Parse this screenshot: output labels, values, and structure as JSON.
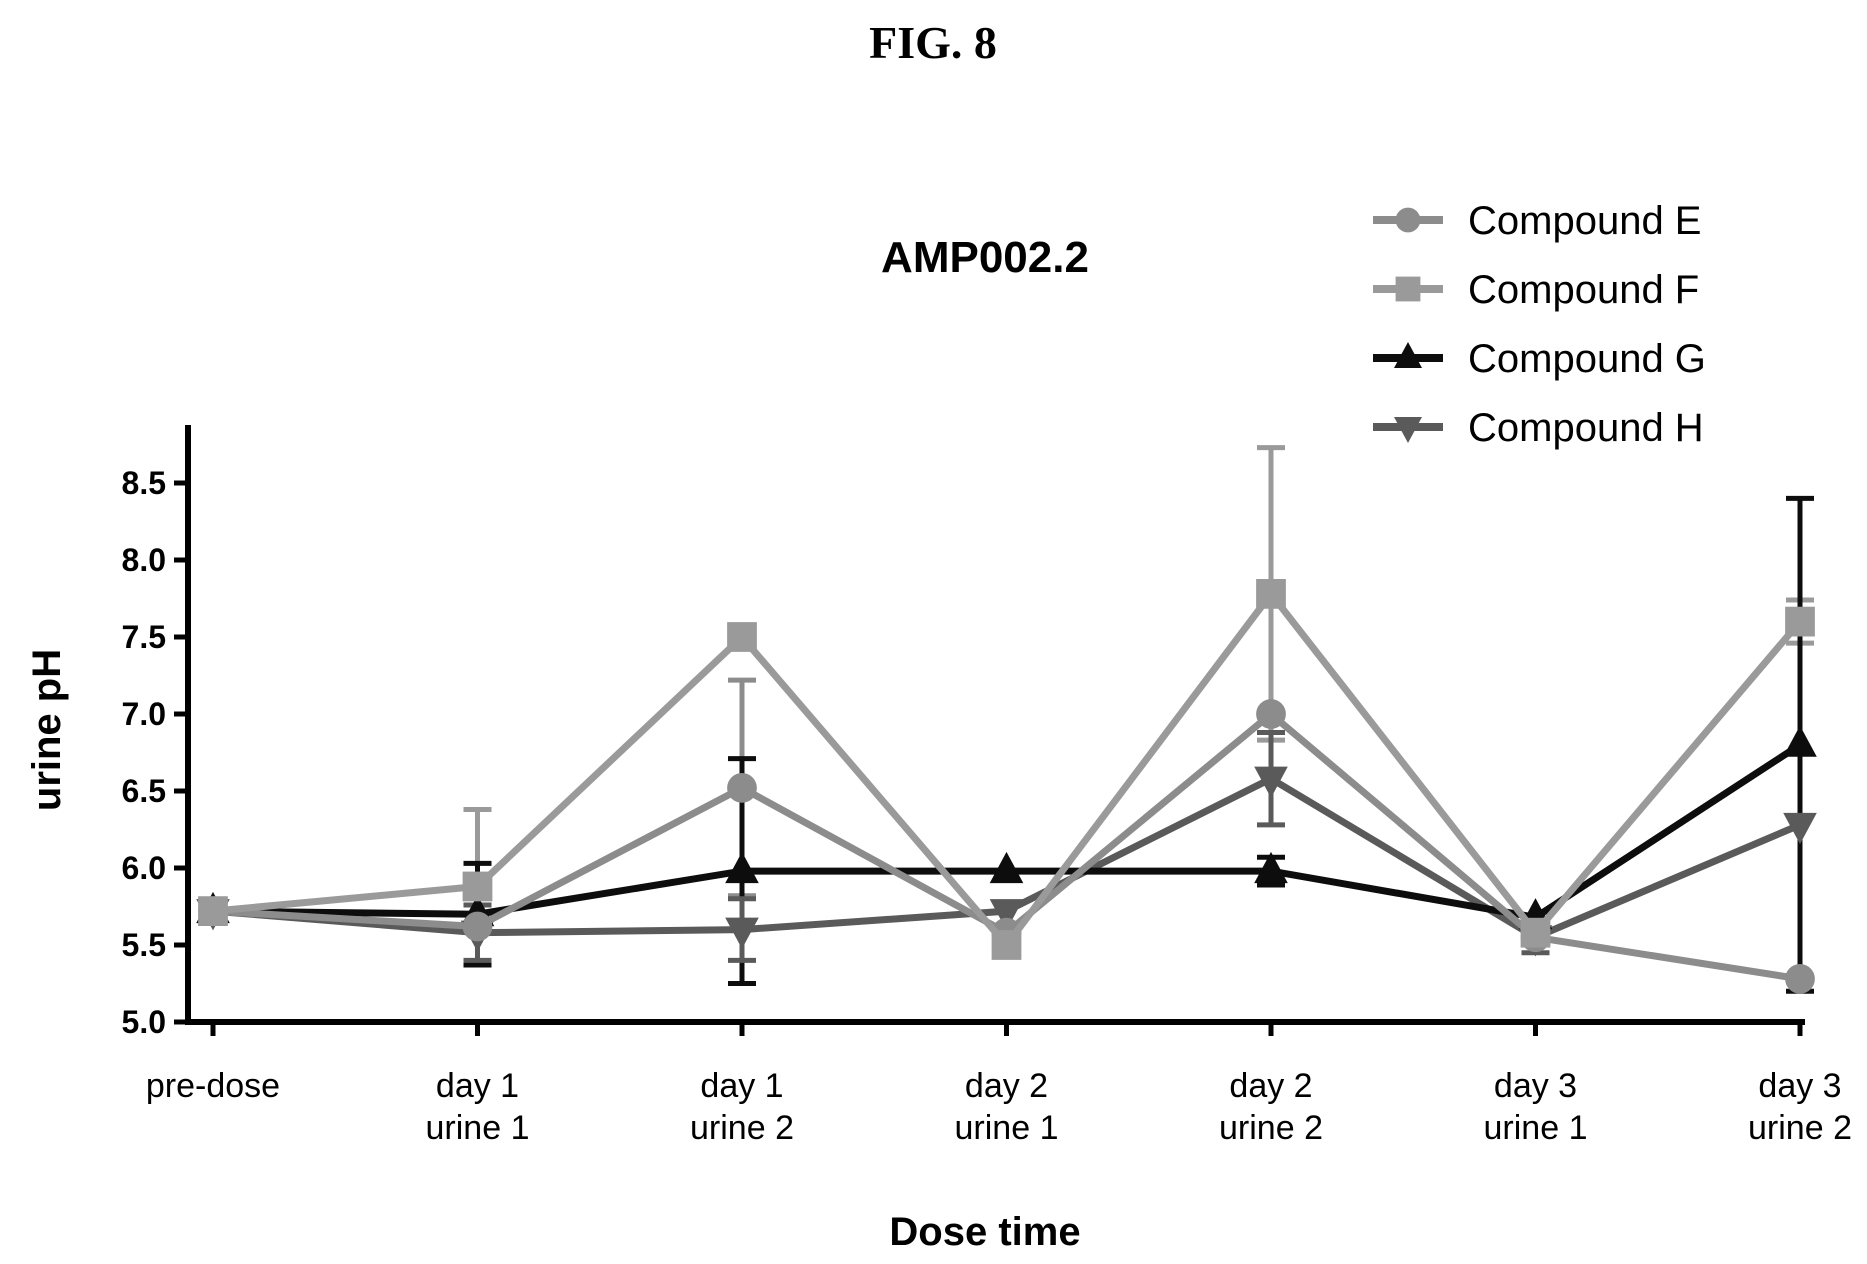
{
  "figure_label": "FIG. 8",
  "chart_data": {
    "type": "line",
    "title": "AMP002.2",
    "xlabel": "Dose time",
    "ylabel": "urine pH",
    "ylim": [
      5.0,
      8.9
    ],
    "yticks": [
      5.0,
      5.5,
      6.0,
      6.5,
      7.0,
      7.5,
      8.0,
      8.5
    ],
    "grid": false,
    "legend_position": "top-right",
    "categories": [
      [
        "pre-dose"
      ],
      [
        "day 1",
        "urine 1"
      ],
      [
        "day 1",
        "urine 2"
      ],
      [
        "day 2",
        "urine 1"
      ],
      [
        "day 2",
        "urine 2"
      ],
      [
        "day 3",
        "urine 1"
      ],
      [
        "day 3",
        "urine 2"
      ]
    ],
    "series": [
      {
        "name": "Compound E",
        "marker": "circle",
        "color": "#8c8c8c",
        "values": [
          5.72,
          5.62,
          6.52,
          5.58,
          7.0,
          5.55,
          5.28
        ],
        "error": [
          0,
          0,
          0.7,
          0,
          0,
          0,
          0
        ]
      },
      {
        "name": "Compound F",
        "marker": "square",
        "color": "#9a9a9a",
        "values": [
          5.72,
          5.88,
          7.5,
          5.5,
          7.78,
          5.58,
          7.6
        ],
        "error": [
          0,
          0.5,
          0.06,
          0.05,
          0.95,
          0.08,
          0.14
        ]
      },
      {
        "name": "Compound G",
        "marker": "triangle-up",
        "color": "#0d0d0d",
        "values": [
          5.72,
          5.7,
          5.98,
          5.98,
          5.98,
          5.68,
          6.8
        ],
        "error": [
          0,
          0.33,
          0.73,
          0,
          0.09,
          0,
          1.6
        ]
      },
      {
        "name": "Compound H",
        "marker": "triangle-down",
        "color": "#5a5a5a",
        "values": [
          5.72,
          5.58,
          5.6,
          5.72,
          6.58,
          5.55,
          6.28
        ],
        "error": [
          0,
          0.18,
          0.2,
          0,
          0.3,
          0.1,
          0
        ]
      }
    ]
  }
}
